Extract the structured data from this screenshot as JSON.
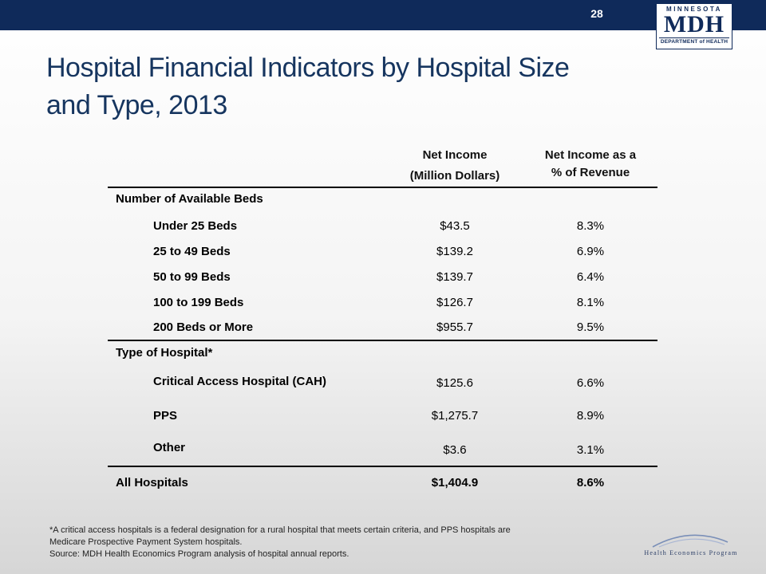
{
  "header": {
    "page_number": "28",
    "logo_state": "MINNESOTA",
    "logo_mark": "MDH",
    "logo_dept": "DEPARTMENT of HEALTH",
    "brand_color": "#0f2a5a"
  },
  "title": {
    "line1": "Hospital Financial Indicators by Hospital Size",
    "line2": "and Type, 2013"
  },
  "table": {
    "col1_header_line1": "Net Income",
    "col1_header_line2": "(Million Dollars)",
    "col2_header_line1": "Net Income as a",
    "col2_header_line2": "% of Revenue",
    "section_beds": "Number of Available Beds",
    "beds_rows": [
      {
        "label": "Under 25 Beds",
        "net_income": "$43.5",
        "pct": "8.3%"
      },
      {
        "label": "25 to 49 Beds",
        "net_income": "$139.2",
        "pct": "6.9%"
      },
      {
        "label": "50 to 99 Beds",
        "net_income": "$139.7",
        "pct": "6.4%"
      },
      {
        "label": "100 to 199 Beds",
        "net_income": "$126.7",
        "pct": "8.1%"
      },
      {
        "label": "200 Beds or More",
        "net_income": "$955.7",
        "pct": "9.5%"
      }
    ],
    "section_type": "Type of Hospital*",
    "type_rows": [
      {
        "label": "Critical Access Hospital (CAH)",
        "net_income": "$125.6",
        "pct": "6.6%"
      },
      {
        "label": "PPS",
        "net_income": "$1,275.7",
        "pct": "8.9%"
      },
      {
        "label": "Other",
        "net_income": "$3.6",
        "pct": "3.1%"
      }
    ],
    "total_row": {
      "label": "All Hospitals",
      "net_income": "$1,404.9",
      "pct": "8.6%"
    }
  },
  "footnote": {
    "line1": "*A critical access hospitals is a federal designation for a rural hospital that meets certain criteria, and PPS hospitals are",
    "line2": "Medicare Prospective Payment System hospitals.",
    "line3": "Source:  MDH Health Economics Program analysis of hospital annual reports."
  },
  "program_logo": "Health Economics Program"
}
